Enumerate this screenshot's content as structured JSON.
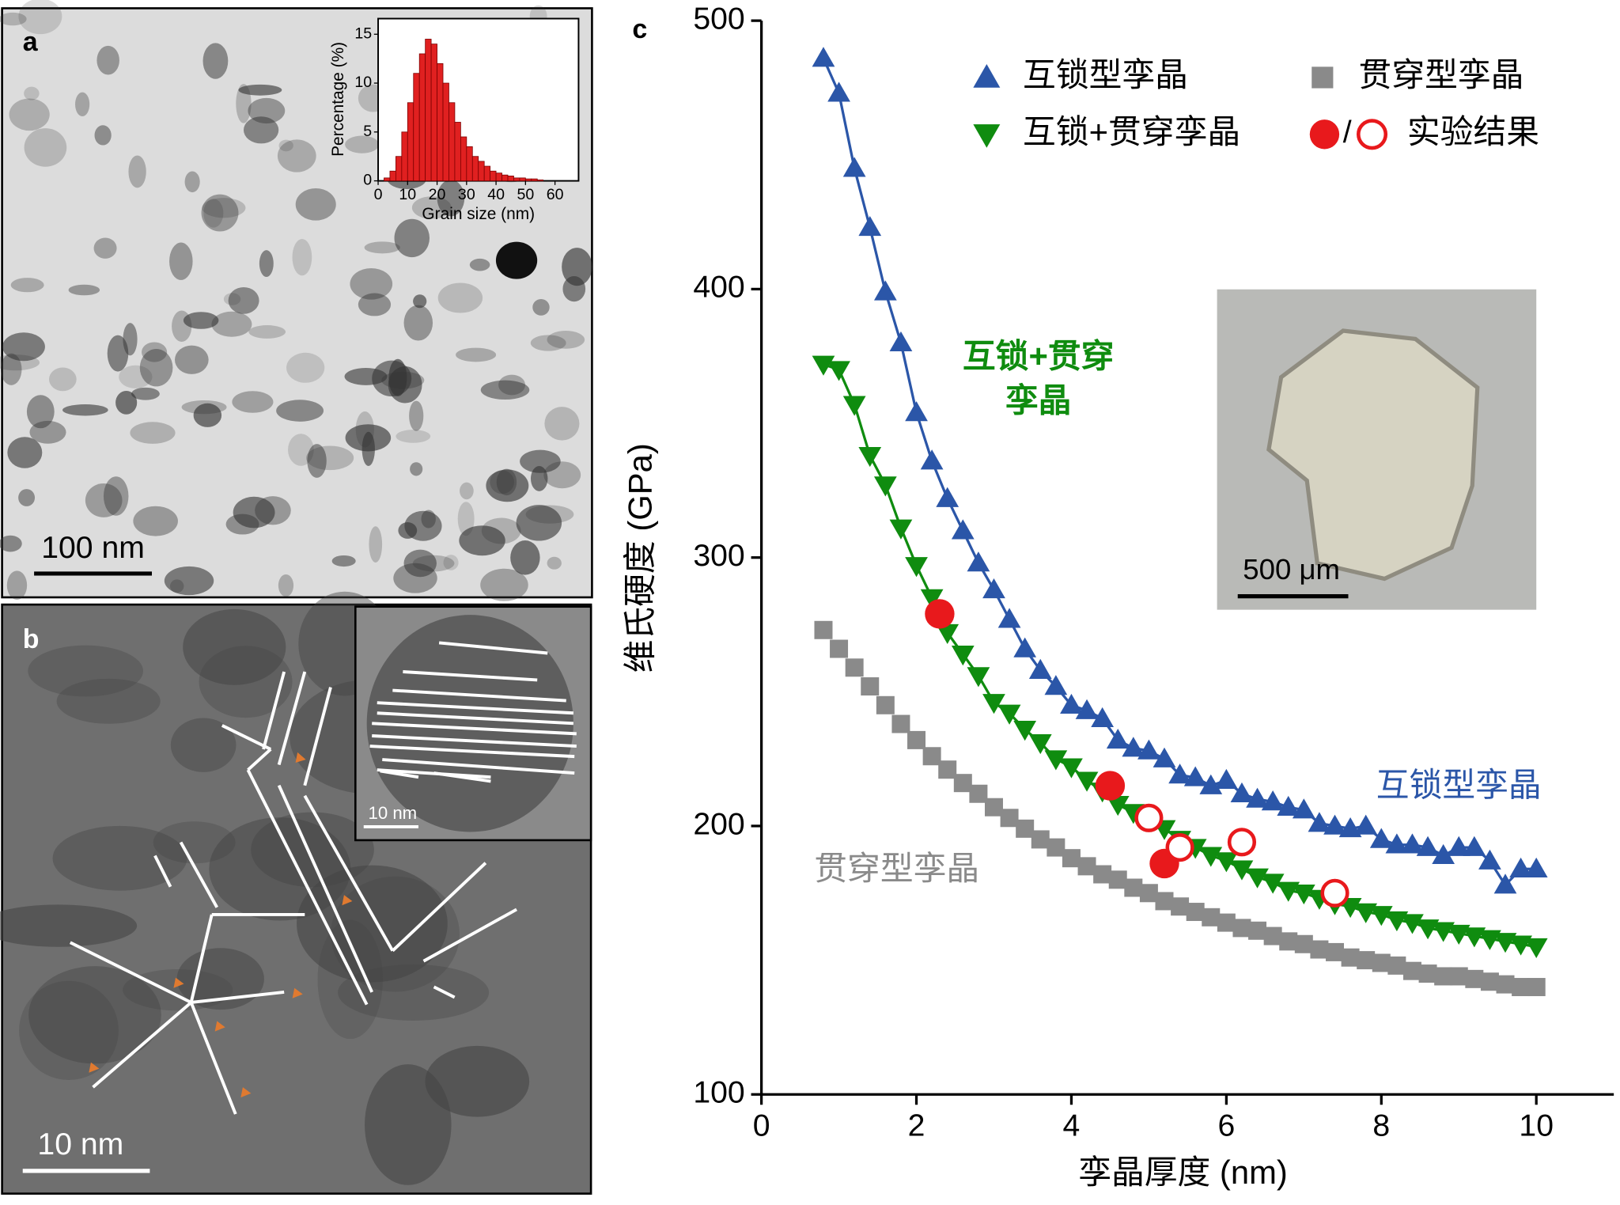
{
  "panel_a": {
    "label": "a",
    "scale_bar": "100 nm"
  },
  "panel_b": {
    "label": "b",
    "scale_bar": "10 nm",
    "inset_scale_bar": "10 nm"
  },
  "panel_c": {
    "label": "c",
    "photo_scale_bar": "500 μm"
  },
  "chart_data": [
    {
      "type": "histogram",
      "x_label": "Grain size (nm)",
      "y_label": "Percentage (%)",
      "bins": [
        2,
        4,
        6,
        8,
        10,
        12,
        14,
        16,
        18,
        20,
        22,
        24,
        26,
        28,
        30,
        32,
        34,
        36,
        38,
        40,
        42,
        44,
        46,
        48,
        50,
        52,
        54,
        56
      ],
      "values": [
        0.3,
        1,
        2.5,
        5,
        8,
        11,
        13,
        14.5,
        14,
        12,
        10,
        8,
        6,
        4.5,
        3.5,
        2.5,
        2,
        1.5,
        1,
        0.8,
        0.6,
        0.5,
        0.3,
        0.3,
        0.2,
        0.2,
        0.1
      ],
      "color": "#e02020",
      "xlim": [
        0,
        68
      ],
      "ylim": [
        0,
        16.6
      ],
      "xticks": [
        0,
        10,
        20,
        30,
        40,
        50,
        60
      ],
      "yticks": [
        0,
        5,
        10,
        15
      ]
    },
    {
      "type": "line",
      "x_label": "孪晶厚度 (nm)",
      "y_label": "维氏硬度 (GPa)",
      "xlim": [
        0,
        11
      ],
      "ylim": [
        100,
        500
      ],
      "xticks": [
        0,
        2,
        4,
        6,
        8,
        10
      ],
      "yticks": [
        100,
        200,
        300,
        400,
        500
      ],
      "x": [
        0.8,
        1,
        1.2,
        1.4,
        1.6,
        1.8,
        2,
        2.2,
        2.4,
        2.6,
        2.8,
        3,
        3.2,
        3.4,
        3.6,
        3.8,
        4,
        4.2,
        4.4,
        4.6,
        4.8,
        5,
        5.2,
        5.4,
        5.6,
        5.8,
        6,
        6.2,
        6.4,
        6.6,
        6.8,
        7,
        7.2,
        7.4,
        7.6,
        7.8,
        8,
        8.2,
        8.4,
        8.6,
        8.8,
        9,
        9.2,
        9.4,
        9.6,
        9.8,
        10
      ],
      "series": [
        {
          "name": "互锁型孪晶",
          "color": "#2b56a8",
          "marker": "triangle-up",
          "line": true,
          "values": [
            486,
            473,
            445,
            423,
            399,
            380,
            354,
            336,
            322,
            310,
            298,
            288,
            277,
            266,
            258,
            252,
            245,
            243,
            240,
            232,
            229,
            228,
            225,
            219,
            218,
            215,
            217,
            212,
            210,
            209,
            207,
            206,
            201,
            200,
            199,
            200,
            195,
            193,
            193,
            192,
            189,
            192,
            192,
            187,
            178,
            184,
            184
          ]
        },
        {
          "name": "贯穿型孪晶",
          "color": "#8a8a8a",
          "marker": "square",
          "line": false,
          "values": [
            273,
            266,
            259,
            252,
            245,
            238,
            232,
            226,
            221,
            216,
            212,
            207,
            203,
            199,
            195,
            192,
            188,
            185,
            182,
            180,
            177,
            175,
            172,
            170,
            168,
            166,
            164,
            162,
            161,
            159,
            157,
            156,
            154,
            153,
            151,
            150,
            149,
            148,
            146,
            145,
            144,
            144,
            143,
            142,
            141,
            140,
            140
          ]
        },
        {
          "name": "互锁+贯穿孪晶",
          "color": "#0f8c0f",
          "marker": "triangle-down",
          "line": true,
          "values": [
            372,
            370,
            357,
            338,
            327,
            311,
            297,
            285,
            272,
            264,
            256,
            246,
            242,
            236,
            231,
            225,
            222,
            217,
            213,
            208,
            205,
            202,
            199,
            195,
            192,
            189,
            187,
            184,
            181,
            179,
            176,
            175,
            173,
            171,
            170,
            168,
            167,
            165,
            164,
            162,
            161,
            160,
            159,
            158,
            157,
            156,
            155
          ]
        },
        {
          "name": "实验结果",
          "color": "#e8191c",
          "marker": "circle",
          "line": false,
          "x": [
            2.3,
            4.5,
            5.2
          ],
          "values": [
            279,
            215,
            186
          ]
        },
        {
          "color": "#e8191c",
          "marker": "circle-open",
          "line": false,
          "x": [
            5.0,
            5.4,
            6.2,
            7.4
          ],
          "values": [
            203,
            192,
            194,
            175
          ]
        }
      ],
      "legend_separator": "/",
      "annotations": [
        {
          "text": "互锁+贯穿",
          "color": "#0f8c0f"
        },
        {
          "text": "孪晶",
          "color": "#0f8c0f"
        },
        {
          "text": "互锁型孪晶",
          "color": "#2b56a8"
        },
        {
          "text": "贯穿型孪晶",
          "color": "#8a8a8a"
        }
      ]
    }
  ]
}
